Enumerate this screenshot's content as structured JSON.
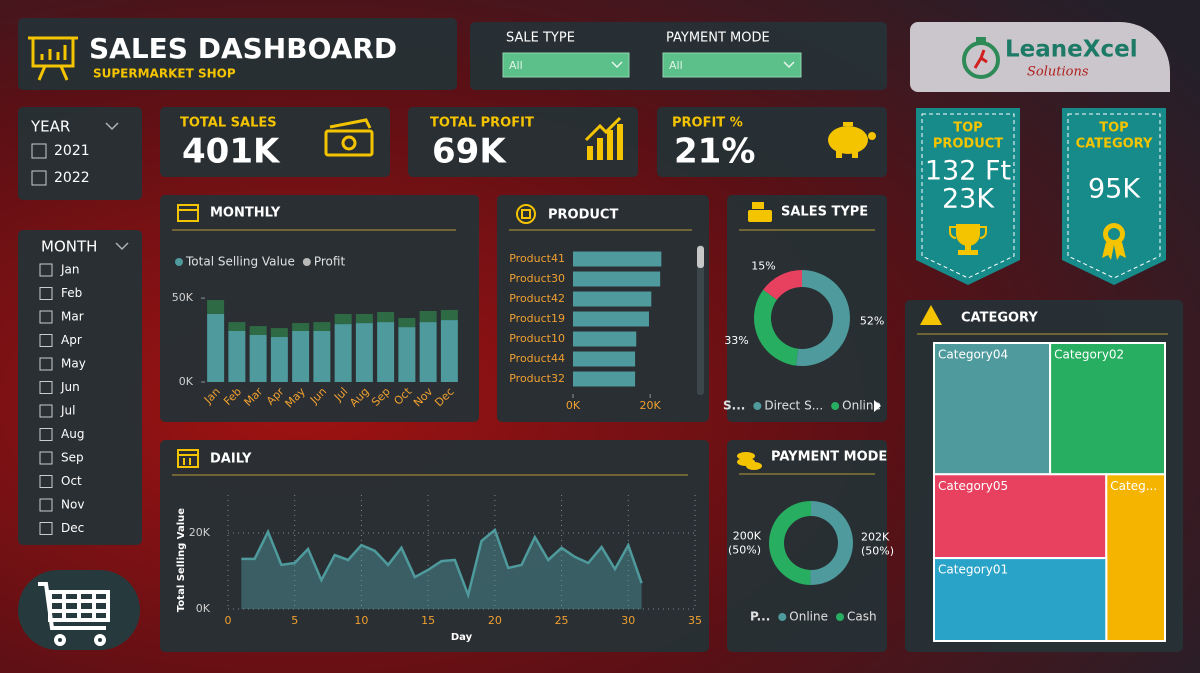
{
  "header": {
    "title": "SALES DASHBOARD",
    "subtitle": "SUPERMARKET SHOP"
  },
  "filters": [
    {
      "label": "SALE TYPE",
      "value": "All"
    },
    {
      "label": "PAYMENT MODE",
      "value": "All"
    }
  ],
  "logo": {
    "name": "LeaneXcel",
    "tagline": "Solutions"
  },
  "slicers": [
    {
      "title": "YEAR",
      "options": [
        "2021",
        "2022"
      ]
    },
    {
      "title": "MONTH",
      "options": [
        "Jan",
        "Feb",
        "Mar",
        "Apr",
        "May",
        "Jun",
        "Jul",
        "Aug",
        "Sep",
        "Oct",
        "Nov",
        "Dec"
      ]
    }
  ],
  "kpis": [
    {
      "label": "TOTAL SALES",
      "value": "401K"
    },
    {
      "label": "TOTAL PROFIT",
      "value": "69K"
    },
    {
      "label": "PROFIT %",
      "value": "21%"
    }
  ],
  "highlights": [
    {
      "label_lines": [
        "TOP",
        "PRODUCT"
      ],
      "lines": [
        "132 Ft",
        "23K"
      ]
    },
    {
      "label_lines": [
        "TOP",
        "CATEGORY"
      ],
      "lines": [
        "95K"
      ]
    }
  ],
  "chart_data": [
    {
      "type": "bar",
      "stacked": true,
      "title": "MONTHLY",
      "categories": [
        "Jan",
        "Feb",
        "Mar",
        "Apr",
        "May",
        "Jun",
        "Jul",
        "Aug",
        "Sep",
        "Oct",
        "Nov",
        "Dec"
      ],
      "series": [
        {
          "name": "Total Selling Value",
          "color": "#4e9a9d",
          "values": [
            40500,
            30400,
            28000,
            26800,
            30400,
            30400,
            34500,
            35100,
            35700,
            32700,
            35700,
            36900
          ]
        },
        {
          "name": "Profit",
          "color": "#2e6b45",
          "values": [
            8300,
            5300,
            5300,
            5300,
            4700,
            5300,
            6000,
            5400,
            6000,
            5400,
            6600,
            6000
          ]
        }
      ],
      "ylim": [
        0,
        56000
      ],
      "yticks": [
        {
          "value": 0,
          "label": "0K"
        },
        {
          "value": 50000,
          "label": "50K"
        }
      ]
    },
    {
      "type": "hbar",
      "title": "PRODUCT",
      "categories": [
        "Product41",
        "Product30",
        "Product42",
        "Product19",
        "Product10",
        "Product44",
        "Product32"
      ],
      "values": [
        22900,
        22600,
        20300,
        19700,
        16400,
        16100,
        16100
      ],
      "color": "#4e9a9d",
      "xlim": [
        0,
        28000
      ],
      "xticks": [
        {
          "value": 0,
          "label": "0K"
        },
        {
          "value": 20000,
          "label": "20K"
        }
      ]
    },
    {
      "type": "pie",
      "title": "SALES TYPE",
      "legend_title": "S...",
      "categories": [
        "Direct S...",
        "Online",
        null
      ],
      "values": [
        52,
        33,
        15
      ],
      "value_labels": [
        "52%",
        "33%",
        "15%"
      ],
      "colors": [
        "#4e9a9d",
        "#27ae60",
        "#e8405f"
      ]
    },
    {
      "type": "area",
      "title": "DAILY",
      "xlabel": "Day",
      "ylabel": "Total Selling Value",
      "x": [
        1,
        2,
        3,
        4,
        5,
        6,
        7,
        8,
        9,
        10,
        11,
        12,
        13,
        14,
        15,
        16,
        17,
        18,
        19,
        20,
        21,
        22,
        23,
        24,
        25,
        26,
        27,
        28,
        29,
        30,
        31
      ],
      "values": [
        13200,
        13200,
        20300,
        11600,
        12100,
        15800,
        7600,
        14200,
        12900,
        16800,
        15300,
        11600,
        16100,
        8400,
        10300,
        12600,
        12900,
        3700,
        17900,
        20800,
        10800,
        11600,
        18900,
        12900,
        16100,
        13700,
        12100,
        16300,
        10500,
        16800,
        6800
      ],
      "color": "#4e9a9d",
      "xlim": [
        0,
        35
      ],
      "xticks": [
        0,
        5,
        10,
        15,
        20,
        25,
        30,
        35
      ],
      "ylim": [
        0,
        30000
      ],
      "yticks": [
        {
          "value": 0,
          "label": "0K"
        },
        {
          "value": 20000,
          "label": "20K"
        }
      ],
      "grid": true
    },
    {
      "type": "pie",
      "title": "PAYMENT MODE",
      "legend_title": "P...",
      "categories": [
        "Online",
        "Cash"
      ],
      "values": [
        202000,
        200000
      ],
      "value_labels": [
        "202K",
        "200K"
      ],
      "percent_labels": [
        "(50%)",
        "(50%)"
      ],
      "colors": [
        "#4e9a9d",
        "#27ae60"
      ]
    },
    {
      "type": "treemap",
      "title": "CATEGORY",
      "categories": [
        "Category04",
        "Category02",
        "Category05",
        "Categ...",
        "Category01"
      ],
      "values": [
        95000,
        94000,
        90000,
        61000,
        89000
      ],
      "colors": [
        "#4e9a9d",
        "#27ae60",
        "#e8405f",
        "#f5b400",
        "#2aa3c8"
      ]
    }
  ]
}
